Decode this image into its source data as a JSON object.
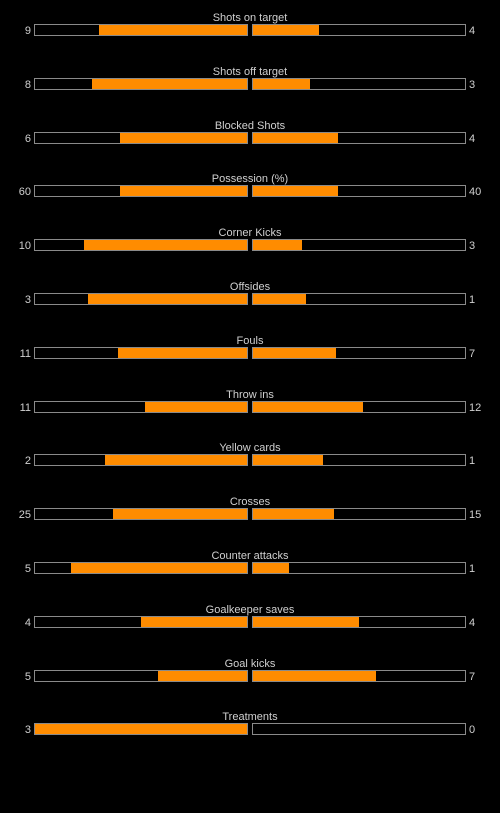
{
  "colors": {
    "background": "#000000",
    "bar_fill": "#ff8c00",
    "bar_border": "#8a8a8a",
    "text": "#cfcfcf"
  },
  "stats": [
    {
      "label": "Shots on target",
      "home": "9",
      "away": "4",
      "home_fill": 0.7,
      "away_fill": 0.31
    },
    {
      "label": "Shots off target",
      "home": "8",
      "away": "3",
      "home_fill": 0.73,
      "away_fill": 0.27
    },
    {
      "label": "Blocked Shots",
      "home": "6",
      "away": "4",
      "home_fill": 0.6,
      "away_fill": 0.4
    },
    {
      "label": "Possession (%)",
      "home": "60",
      "away": "40",
      "home_fill": 0.6,
      "away_fill": 0.4
    },
    {
      "label": "Corner Kicks",
      "home": "10",
      "away": "3",
      "home_fill": 0.77,
      "away_fill": 0.23
    },
    {
      "label": "Offsides",
      "home": "3",
      "away": "1",
      "home_fill": 0.75,
      "away_fill": 0.25
    },
    {
      "label": "Fouls",
      "home": "11",
      "away": "7",
      "home_fill": 0.61,
      "away_fill": 0.39
    },
    {
      "label": "Throw ins",
      "home": "11",
      "away": "12",
      "home_fill": 0.48,
      "away_fill": 0.52
    },
    {
      "label": "Yellow cards",
      "home": "2",
      "away": "1",
      "home_fill": 0.67,
      "away_fill": 0.33
    },
    {
      "label": "Crosses",
      "home": "25",
      "away": "15",
      "home_fill": 0.63,
      "away_fill": 0.38
    },
    {
      "label": "Counter attacks",
      "home": "5",
      "away": "1",
      "home_fill": 0.83,
      "away_fill": 0.17
    },
    {
      "label": "Goalkeeper saves",
      "home": "4",
      "away": "4",
      "home_fill": 0.5,
      "away_fill": 0.5
    },
    {
      "label": "Goal kicks",
      "home": "5",
      "away": "7",
      "home_fill": 0.42,
      "away_fill": 0.58
    },
    {
      "label": "Treatments",
      "home": "3",
      "away": "0",
      "home_fill": 1.0,
      "away_fill": 0.0
    }
  ]
}
